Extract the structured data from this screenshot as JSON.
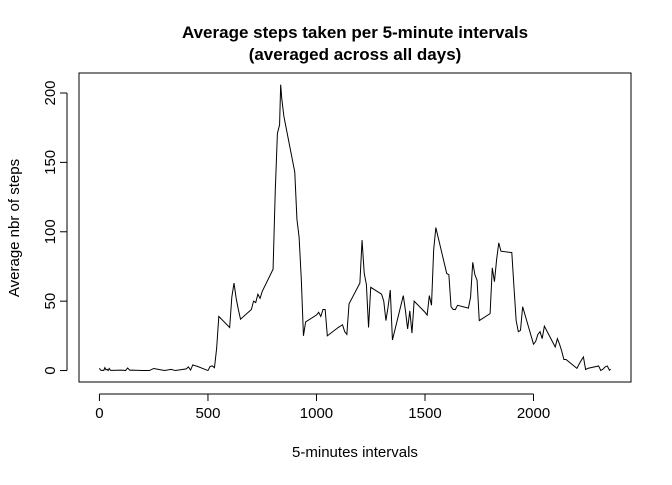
{
  "chart_data": {
    "type": "line",
    "title": "Average steps taken per 5-minute intervals",
    "subtitle": "(averaged across all days)",
    "x_label": "5-minutes intervals",
    "y_label": "Average nbr of steps",
    "x": [
      0,
      5,
      10,
      15,
      20,
      25,
      30,
      35,
      40,
      45,
      50,
      55,
      100,
      110,
      120,
      130,
      140,
      150,
      200,
      230,
      250,
      300,
      330,
      350,
      400,
      410,
      420,
      430,
      440,
      450,
      500,
      510,
      520,
      530,
      540,
      550,
      600,
      610,
      620,
      630,
      640,
      650,
      700,
      710,
      720,
      730,
      740,
      750,
      800,
      810,
      820,
      830,
      835,
      840,
      850,
      900,
      910,
      920,
      930,
      940,
      950,
      1000,
      1010,
      1020,
      1030,
      1040,
      1050,
      1100,
      1110,
      1120,
      1130,
      1140,
      1150,
      1200,
      1210,
      1220,
      1230,
      1240,
      1250,
      1300,
      1310,
      1320,
      1330,
      1340,
      1350,
      1400,
      1410,
      1420,
      1430,
      1440,
      1450,
      1500,
      1510,
      1520,
      1530,
      1540,
      1550,
      1600,
      1610,
      1620,
      1630,
      1640,
      1650,
      1700,
      1710,
      1720,
      1730,
      1740,
      1750,
      1800,
      1810,
      1820,
      1830,
      1840,
      1850,
      1900,
      1910,
      1920,
      1930,
      1940,
      1950,
      2000,
      2010,
      2020,
      2030,
      2040,
      2050,
      2100,
      2110,
      2120,
      2130,
      2140,
      2150,
      2200,
      2210,
      2220,
      2230,
      2240,
      2250,
      2300,
      2310,
      2320,
      2330,
      2340,
      2350,
      2355
    ],
    "series": [
      {
        "color": "#000000",
        "values": [
          1.7,
          0.3,
          0.1,
          0.2,
          0.1,
          2.1,
          0.5,
          0.9,
          0,
          1.5,
          0.3,
          0.1,
          0.3,
          0.2,
          0,
          1.8,
          0.2,
          0.3,
          0,
          0,
          1.5,
          0,
          0.8,
          0,
          1.2,
          2.6,
          0.3,
          4.1,
          3.5,
          3.1,
          0,
          3,
          3.3,
          2.1,
          16,
          39,
          31,
          53,
          63,
          52,
          44,
          37,
          44,
          50,
          49,
          55,
          52,
          57,
          73,
          129,
          171,
          177,
          206,
          196,
          183,
          143,
          109,
          96,
          66,
          25,
          35,
          40,
          42,
          39,
          44,
          44,
          25,
          31,
          32,
          33,
          28,
          26,
          48,
          63,
          94,
          70,
          62,
          31,
          60,
          55,
          50,
          36,
          46,
          58,
          22,
          54,
          43,
          30,
          43,
          27,
          50,
          42,
          40,
          54,
          47,
          87,
          103,
          70,
          69,
          46,
          44,
          44,
          47,
          45,
          53,
          78,
          69,
          65,
          36,
          41,
          74,
          64,
          80,
          92,
          86,
          85,
          60,
          36,
          28,
          29,
          46,
          19,
          21,
          26,
          28,
          23,
          32,
          17,
          23,
          19,
          14,
          8,
          8,
          1.6,
          4.6,
          7.3,
          9.8,
          0.7,
          1.6,
          3.3,
          0,
          1.0,
          2.6,
          3.3,
          0.2,
          1.1
        ]
      }
    ],
    "xlim": [
      -94.2,
      2449.2
    ],
    "ylim": [
      -8.25,
      214.4
    ],
    "xticks": [
      0,
      500,
      1000,
      1500,
      2000
    ],
    "yticks": [
      0,
      50,
      100,
      150,
      200
    ]
  }
}
